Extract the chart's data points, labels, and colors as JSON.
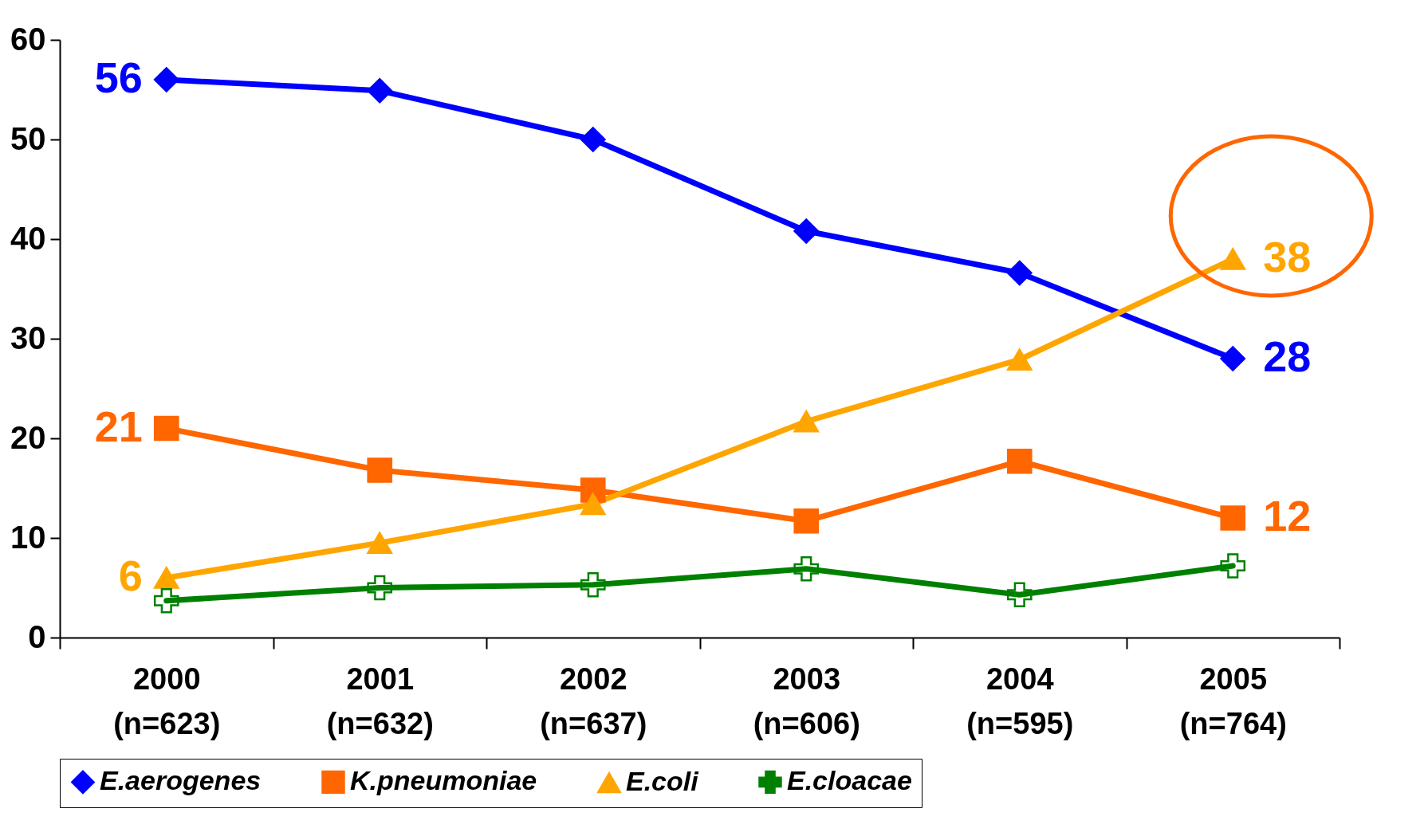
{
  "chart_data": {
    "type": "line",
    "categories": [
      "2000\n(n=623)",
      "2001\n(n=632)",
      "2002\n(n=637)",
      "2003\n(n=606)",
      "2004\n(n=595)",
      "2005\n(n=764)"
    ],
    "ylim": [
      0,
      60
    ],
    "yticks": [
      0,
      10,
      20,
      30,
      40,
      50,
      60
    ],
    "grid": false,
    "legend": "bottom",
    "series": [
      {
        "name": "E.aerogenes",
        "color": "#0000ff",
        "marker": "diamond",
        "values": [
          56,
          54.9,
          50,
          40.8,
          36.6,
          28
        ],
        "value_labels": [
          "56",
          null,
          null,
          null,
          null,
          "28"
        ]
      },
      {
        "name": "K.pneumoniae",
        "color": "#ff6600",
        "marker": "square",
        "values": [
          21,
          16.8,
          14.8,
          11.7,
          17.7,
          12
        ],
        "value_labels": [
          "21",
          null,
          null,
          null,
          null,
          "12"
        ]
      },
      {
        "name": "E.coli",
        "color": "#ffa500",
        "marker": "triangle",
        "values": [
          6,
          9.5,
          13.4,
          21.7,
          27.9,
          38
        ],
        "value_labels": [
          "6",
          null,
          null,
          null,
          null,
          "38"
        ]
      },
      {
        "name": "E.cloacae",
        "color": "#008000",
        "marker": "cross",
        "values": [
          3.7,
          5,
          5.3,
          6.9,
          4.3,
          7.2
        ],
        "value_labels": [
          null,
          null,
          null,
          null,
          null,
          null
        ]
      }
    ]
  }
}
